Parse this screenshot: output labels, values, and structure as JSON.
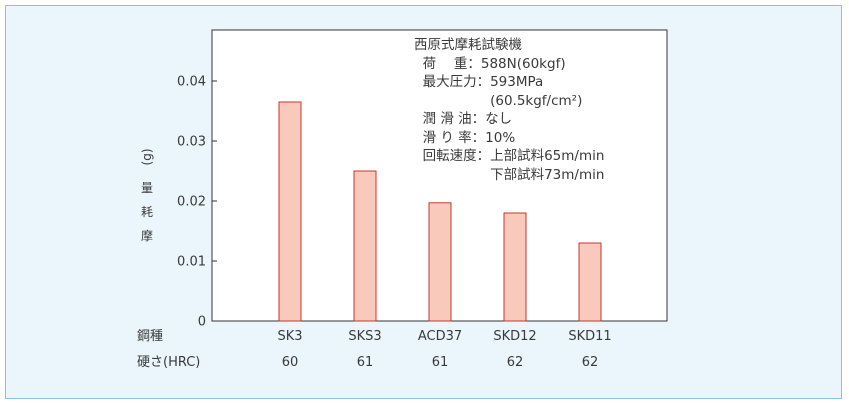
{
  "chart_data": {
    "type": "bar",
    "categories": [
      "SK3",
      "SKS3",
      "ACD37",
      "SKD12",
      "SKD11"
    ],
    "values": [
      0.0365,
      0.025,
      0.0197,
      0.018,
      0.013
    ],
    "ylabel": "摩 耗 量 (g)",
    "ylim": [
      0,
      0.0485
    ],
    "yticks": [
      0,
      0.01,
      0.02,
      0.03,
      0.04
    ],
    "ytick_labels": [
      "0",
      "0.01",
      "0.02",
      "0.03",
      "0.04"
    ],
    "grid": false,
    "bar_color": "#f9c9bc",
    "bar_edge_color": "#c0392b",
    "rows": [
      {
        "label": "鋼種",
        "values": [
          "SK3",
          "SKS3",
          "ACD37",
          "SKD12",
          "SKD11"
        ]
      },
      {
        "label": "硬さ(HRC)",
        "values": [
          "60",
          "61",
          "61",
          "62",
          "62"
        ]
      }
    ],
    "annotation": {
      "lines": [
        "西原式摩耗試験機",
        "  荷　 重：588N(60kgf)",
        "  最大圧力：593MPa",
        "　　　　　  (60.5kgf/cm²)",
        "  潤 滑 油：なし",
        "  滑 り 率：10%",
        "  回転速度：上部試料65m/min",
        "　　　　　  下部試料73m/min"
      ]
    }
  },
  "colors": {
    "panel_bg": "#eaf6fb",
    "panel_border": "#86c4df",
    "plot_bg": "#ffffff",
    "axis": "#333333"
  }
}
